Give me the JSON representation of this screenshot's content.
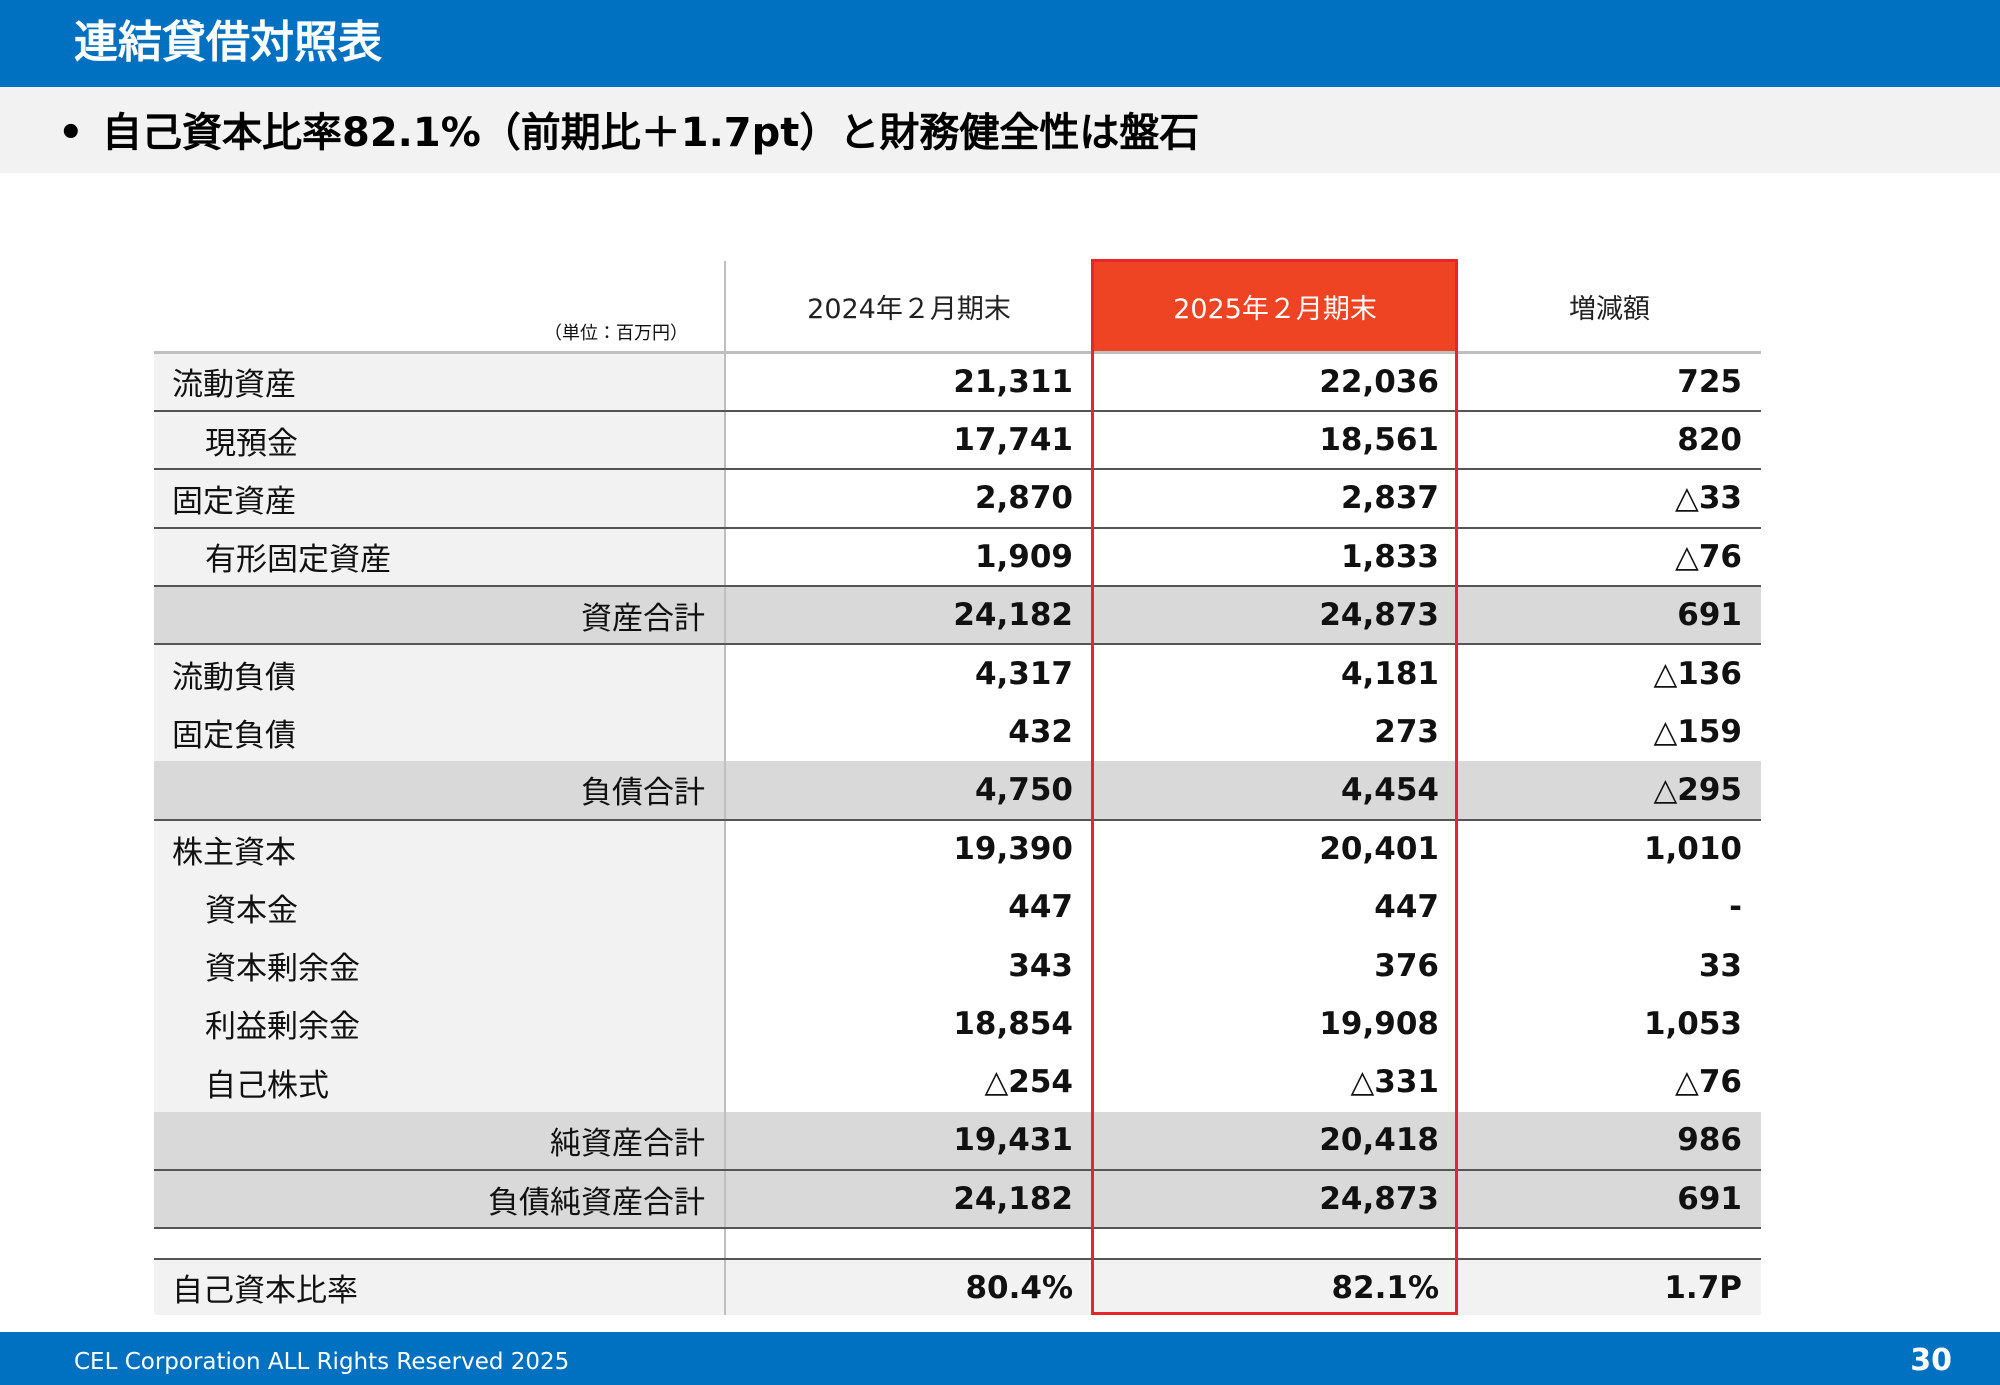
{
  "header": {
    "title": "連結貸借対照表",
    "bullet": "自己資本比率82.1%（前期比＋1.7pt）と財務健全性は盤石"
  },
  "table": {
    "unit": "（単位：百万円）",
    "columns": [
      "2024年２月期末",
      "2025年２月期末",
      "増減額"
    ],
    "rows": [
      [
        "流動資産",
        "21,311",
        "22,036",
        "725"
      ],
      [
        "現預金",
        "17,741",
        "18,561",
        "820"
      ],
      [
        "固定資産",
        "2,870",
        "2,837",
        "△33"
      ],
      [
        "有形固定資産",
        "1,909",
        "1,833",
        "△76"
      ],
      [
        "資産合計",
        "24,182",
        "24,873",
        "691"
      ],
      [
        "流動負債",
        "4,317",
        "4,181",
        "△136"
      ],
      [
        "固定負債",
        "432",
        "273",
        "△159"
      ],
      [
        "負債合計",
        "4,750",
        "4,454",
        "△295"
      ],
      [
        "株主資本",
        "19,390",
        "20,401",
        "1,010"
      ],
      [
        "資本金",
        "447",
        "447",
        "-"
      ],
      [
        "資本剰余金",
        "343",
        "376",
        "33"
      ],
      [
        "利益剰余金",
        "18,854",
        "19,908",
        "1,053"
      ],
      [
        "自己株式",
        "△254",
        "△331",
        "△76"
      ],
      [
        "純資産合計",
        "19,431",
        "20,418",
        "986"
      ],
      [
        "負債純資産合計",
        "24,182",
        "24,873",
        "691"
      ],
      [
        "自己資本比率",
        "80.4%",
        "82.1%",
        "1.7P"
      ]
    ]
  },
  "footer": {
    "copyright": "CEL Corporation ALL Rights Reserved 2025",
    "page": "30"
  }
}
